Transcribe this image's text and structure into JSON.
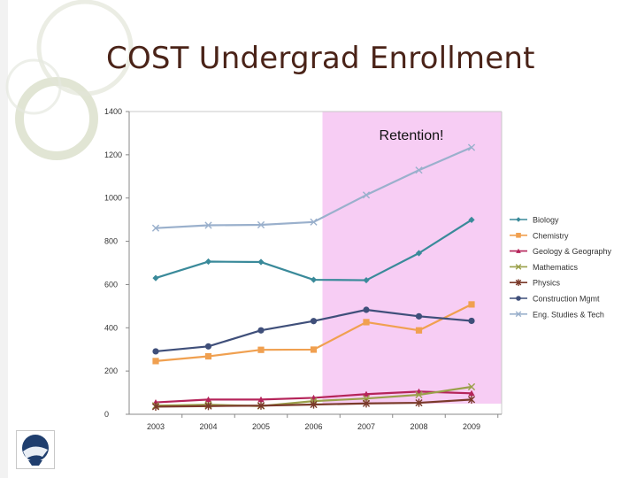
{
  "slide": {
    "title": "COST Undergrad Enrollment"
  },
  "colors": {
    "title": "#4a2318",
    "highlight": "#f7cdf4",
    "axis": "#888888"
  },
  "chart_data": {
    "type": "line",
    "title": "",
    "xlabel": "",
    "ylabel": "",
    "categories": [
      "2003",
      "2004",
      "2005",
      "2006",
      "2007",
      "2008",
      "2009"
    ],
    "ylim": [
      0,
      1400
    ],
    "yticks": [
      "0",
      "200",
      "400",
      "600",
      "800",
      "1000",
      "1200",
      "1400"
    ],
    "grid": false,
    "legend_position": "right",
    "highlight_region": {
      "from": "2006",
      "to": "2009",
      "label": "Retention!"
    },
    "series": [
      {
        "name": "Biology",
        "marker": "diamond",
        "color": "#3a8a9a",
        "values": [
          630,
          706,
          704,
          622,
          620,
          745,
          899
        ]
      },
      {
        "name": "Chemistry",
        "marker": "square",
        "color": "#f0a050",
        "values": [
          246,
          268,
          298,
          299,
          426,
          388,
          508
        ]
      },
      {
        "name": "Geology & Geography",
        "marker": "triangle",
        "color": "#b5245a",
        "values": [
          55,
          68,
          68,
          76,
          93,
          105,
          97
        ]
      },
      {
        "name": "Mathematics",
        "marker": "x",
        "color": "#9aa04a",
        "values": [
          40,
          44,
          38,
          61,
          73,
          90,
          127
        ]
      },
      {
        "name": "Physics",
        "marker": "star",
        "color": "#7a3a2a",
        "values": [
          35,
          38,
          40,
          45,
          50,
          53,
          68
        ]
      },
      {
        "name": "Construction Mgmt",
        "marker": "circle",
        "color": "#3f4f7a",
        "values": [
          291,
          314,
          388,
          431,
          483,
          453,
          432
        ]
      },
      {
        "name": "Eng. Studies & Tech",
        "marker": "x",
        "color": "#9ab0cc",
        "values": [
          861,
          874,
          876,
          889,
          1014,
          1129,
          1234
        ]
      }
    ]
  }
}
